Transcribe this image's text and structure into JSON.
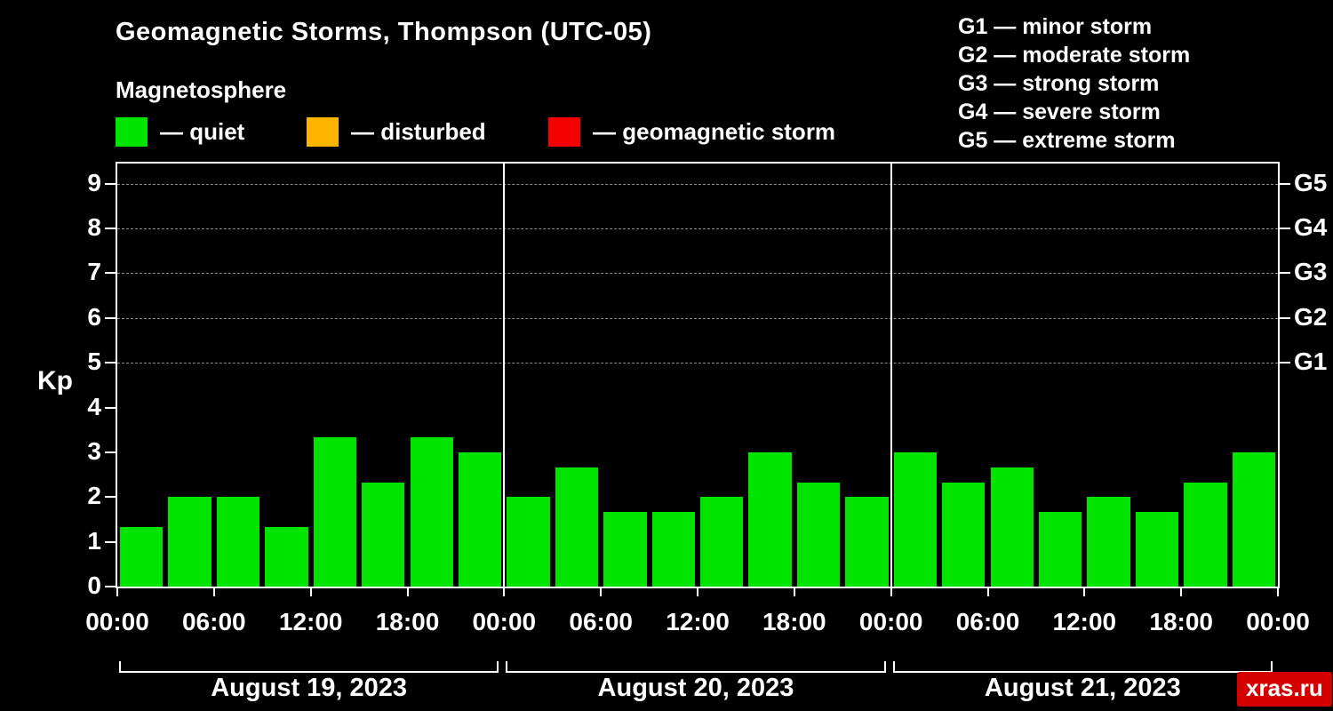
{
  "title": "Geomagnetic Storms, Thompson (UTC-05)",
  "subtitle": "Magnetosphere",
  "legend": {
    "items": [
      {
        "name": "quiet",
        "color": "#00e400",
        "label": "— quiet"
      },
      {
        "name": "disturbed",
        "color": "#ffb400",
        "label": "— disturbed"
      },
      {
        "name": "storm",
        "color": "#f40000",
        "label": "— geomagnetic storm"
      }
    ]
  },
  "storm_scale": {
    "items": [
      "G1 — minor storm",
      "G2 — moderate storm",
      "G3 — strong storm",
      "G4 — severe storm",
      "G5 — extreme storm"
    ]
  },
  "watermark": "xras.ru",
  "chart_data": {
    "type": "bar",
    "title": "Geomagnetic Storms, Thompson (UTC-05)",
    "ylabel": "Kp",
    "ylim": [
      0,
      9.45
    ],
    "yticks": [
      0,
      1,
      2,
      3,
      4,
      5,
      6,
      7,
      8,
      9
    ],
    "gridlines_kp": [
      5,
      6,
      7,
      8,
      9
    ],
    "grid": "dashed-horizontal-at-storm-levels",
    "right_axis": [
      {
        "kp": 5,
        "label": "G1"
      },
      {
        "kp": 6,
        "label": "G2"
      },
      {
        "kp": 7,
        "label": "G3"
      },
      {
        "kp": 8,
        "label": "G4"
      },
      {
        "kp": 9,
        "label": "G5"
      }
    ],
    "bar_color": "#00e400",
    "hours_total": 72,
    "slot_hours": 3,
    "x_tick_hours": [
      0,
      6,
      12,
      18,
      24,
      30,
      36,
      42,
      48,
      54,
      60,
      66,
      72
    ],
    "x_tick_labels": [
      "00:00",
      "06:00",
      "12:00",
      "18:00",
      "00:00",
      "06:00",
      "12:00",
      "18:00",
      "00:00",
      "06:00",
      "12:00",
      "18:00",
      "00:00"
    ],
    "day_boundaries_hours": [
      24,
      48
    ],
    "days": [
      {
        "label": "August 19, 2023",
        "values": [
          1.33,
          2.0,
          2.0,
          1.33,
          3.33,
          2.33,
          3.33,
          3.0
        ]
      },
      {
        "label": "August 20, 2023",
        "values": [
          2.0,
          2.67,
          1.67,
          1.67,
          2.0,
          3.0,
          2.33,
          2.0
        ]
      },
      {
        "label": "August 21, 2023",
        "values": [
          3.0,
          2.33,
          2.67,
          1.67,
          2.0,
          1.67,
          2.33,
          3.0
        ]
      }
    ]
  }
}
